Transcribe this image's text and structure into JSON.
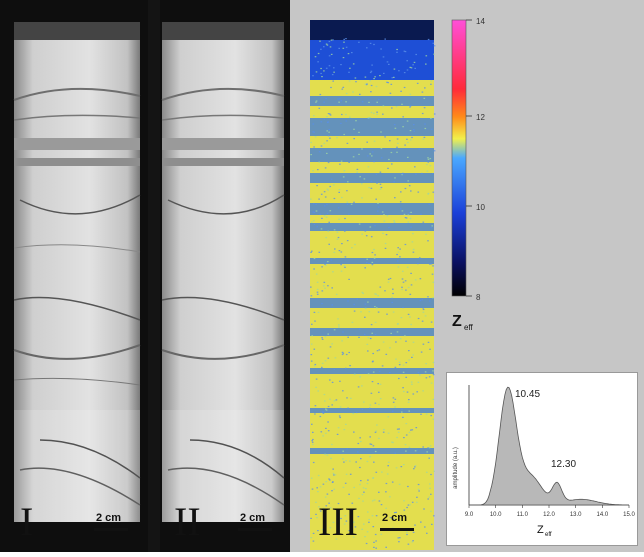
{
  "panels": [
    {
      "roman": "I",
      "scale_label": "2 cm"
    },
    {
      "roman": "II",
      "scale_label": "2 cm"
    },
    {
      "roman": "III",
      "scale_label": "2 cm"
    }
  ],
  "colorbar": {
    "ticks": [
      "14",
      "12",
      "10",
      "8"
    ],
    "label_main": "Z",
    "label_sub": "eff"
  },
  "histogram": {
    "ylabel": "amplitude (a.u.)",
    "xlabel_main": "Z",
    "xlabel_sub": "eff",
    "xticks": [
      "9.0",
      "10.0",
      "11.0",
      "12.0",
      "13.0",
      "14.0",
      "15.0"
    ],
    "peak_main": "10.45",
    "peak_secondary": "12.30"
  },
  "colors": {
    "background_gray": "#c6c6c6",
    "histogram_fill": "#b8b8b8",
    "zeff_yellow": "#e8e04a",
    "zeff_blue": "#2a5fd0"
  }
}
